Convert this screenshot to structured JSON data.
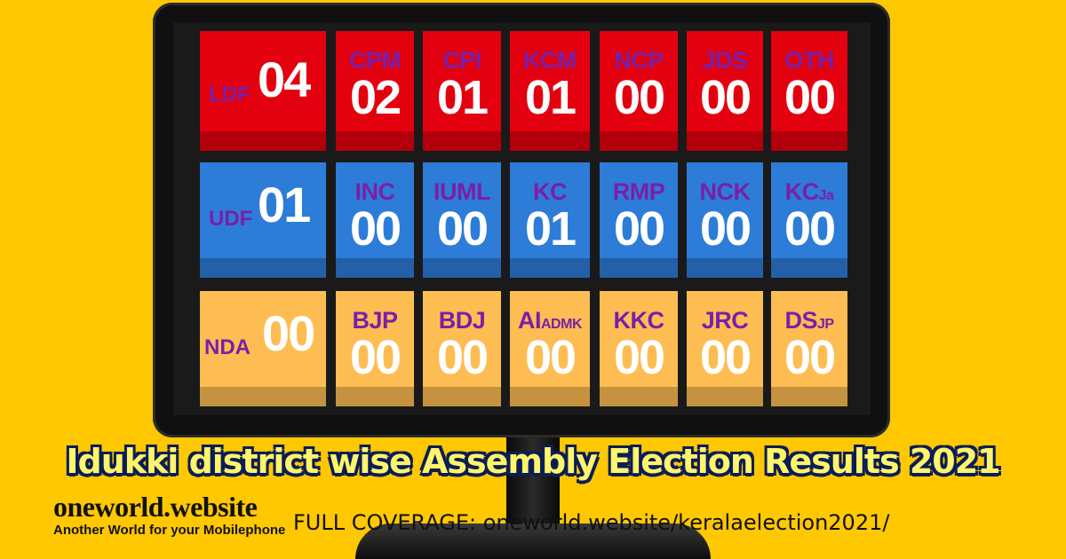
{
  "ldf": {
    "label": "LDF",
    "count": "04",
    "parties": [
      {
        "name": "CPM",
        "count": "02"
      },
      {
        "name": "CPI",
        "count": "01"
      },
      {
        "name": "KCM",
        "count": "01"
      },
      {
        "name": "NCP",
        "count": "00"
      },
      {
        "name": "JDS",
        "count": "00"
      },
      {
        "name": "OTH",
        "count": "00"
      }
    ]
  },
  "udf": {
    "label": "UDF",
    "count": "01",
    "parties": [
      {
        "name": "INC",
        "count": "00"
      },
      {
        "name": "IUML",
        "count": "00"
      },
      {
        "name": "KC",
        "count": "01"
      },
      {
        "name": "RMP",
        "count": "00"
      },
      {
        "name": "NCK",
        "count": "00"
      },
      {
        "name": "KC",
        "sub": "Ja",
        "count": "00"
      }
    ]
  },
  "nda": {
    "label": "NDA",
    "count": "00",
    "parties": [
      {
        "name": "BJP",
        "count": "00"
      },
      {
        "name": "BDJ",
        "count": "00"
      },
      {
        "name": "AI",
        "sub": "ADMK",
        "count": "00"
      },
      {
        "name": "KKC",
        "count": "00"
      },
      {
        "name": "JRC",
        "count": "00"
      },
      {
        "name": "DS",
        "sub": "JP",
        "count": "00"
      }
    ]
  },
  "headline": "Idukki district wise Assembly Election Results 2021",
  "brand": {
    "logo": "oneworld.website",
    "tagline": "Another World for your Mobilephone"
  },
  "coverage": "FULL COVERAGE: oneworld.website/keralaelection2021/",
  "colors": {
    "background": "#FFC800",
    "ldf": "#E3000F",
    "udf": "#2D7CD8",
    "nda": "#FDBD53",
    "party_text": "#7A1FA8",
    "headline": "#FFF56B"
  }
}
